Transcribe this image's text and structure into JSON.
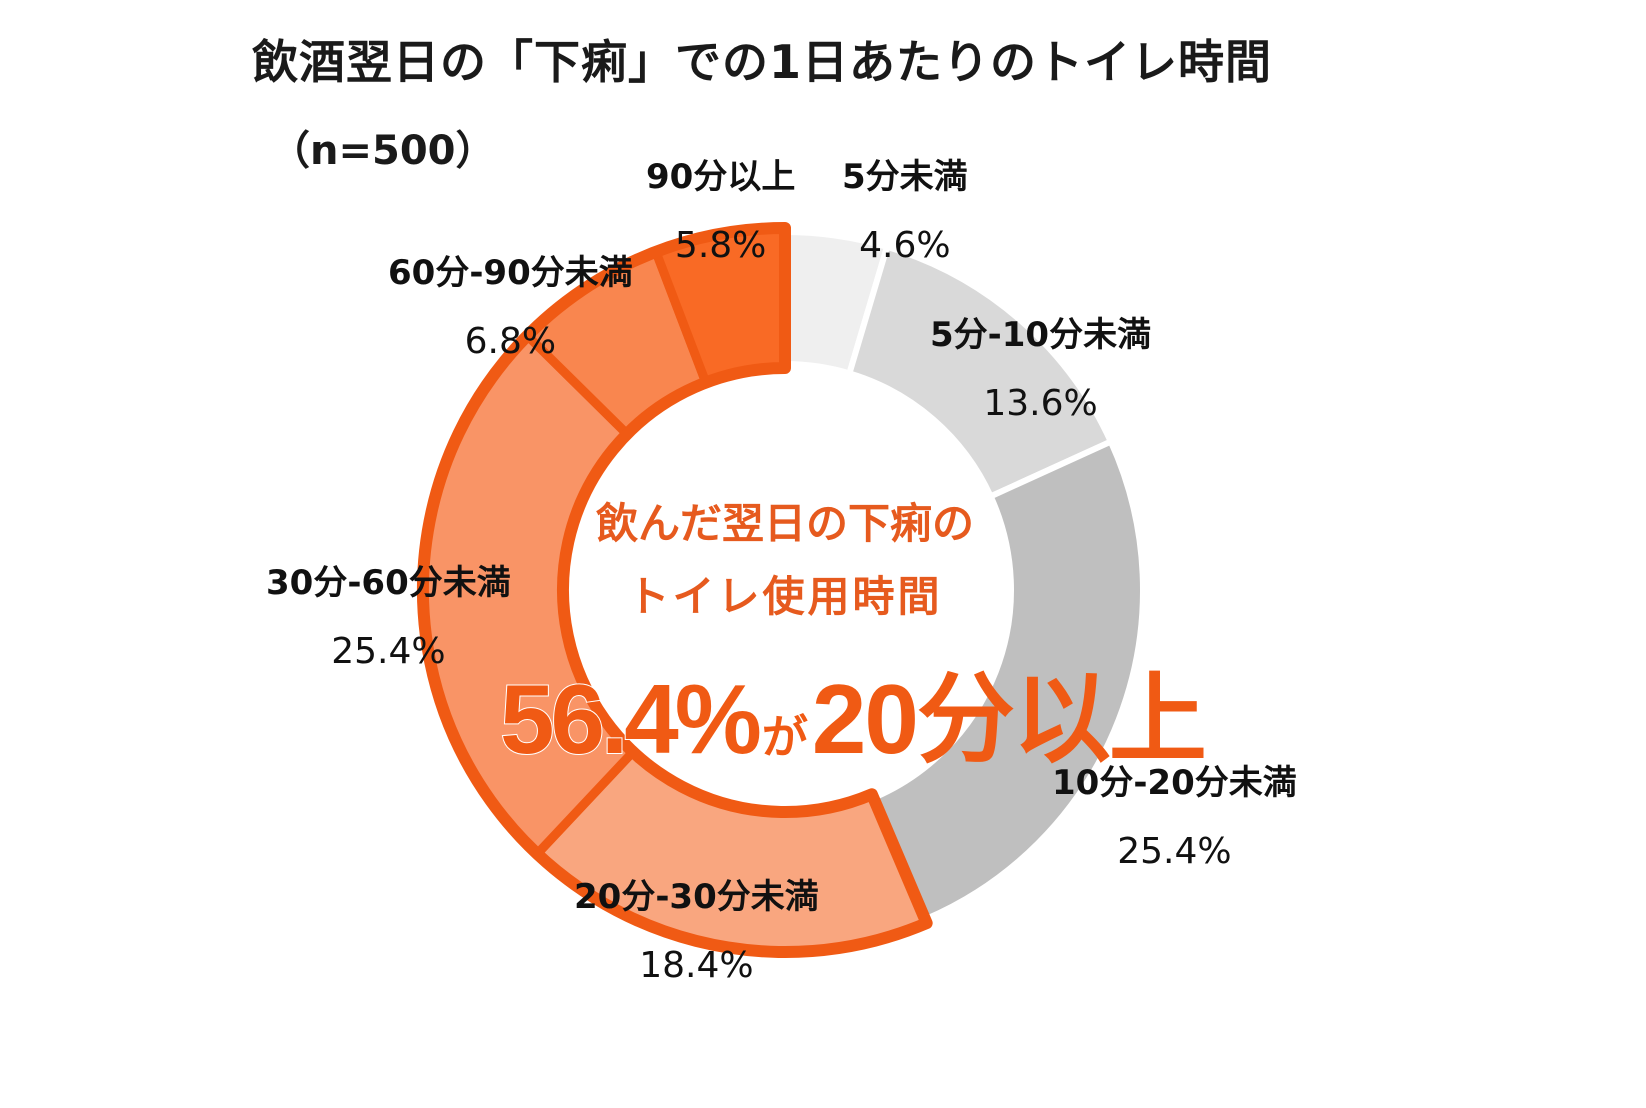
{
  "header": {
    "title": "飲酒翌日の「下痢」での1日あたりのトイレ時間",
    "sample": "（n=500）"
  },
  "center": {
    "line1": "飲んだ翌日の下痢の",
    "line2": "トイレ使用時間",
    "headline_value": "56.4%",
    "headline_particle": "が",
    "headline_rest": "20分以上"
  },
  "colors": {
    "accent": "#f05a14",
    "outline": "#f05a14"
  },
  "chart_data": {
    "type": "pie",
    "subtype": "donut",
    "title": "飲酒翌日の「下痢」での1日あたりのトイレ時間",
    "subtitle": "（n=500）",
    "categories": [
      "5分未満",
      "5分-10分未満",
      "10分-20分未満",
      "20分-30分未満",
      "30分-60分未満",
      "60分-90分未満",
      "90分以上"
    ],
    "values": [
      4.6,
      13.6,
      25.4,
      18.4,
      25.4,
      6.8,
      5.8
    ],
    "unit": "%",
    "direction": "clockwise from top",
    "colors": [
      "#efefef",
      "#d9d9d9",
      "#bfbfbf",
      "#f9a67f",
      "#f99466",
      "#f9864f",
      "#f96a25"
    ],
    "highlight_group": [
      "20分-30分未満",
      "30分-60分未満",
      "60分-90分未満",
      "90分以上"
    ],
    "highlight_total": 56.4,
    "annotation": "56.4%が20分以上",
    "legend": "none (direct labels)"
  },
  "labels": [
    {
      "name": "5分未満",
      "pct": "4.6%"
    },
    {
      "name": "5分-10分未満",
      "pct": "13.6%"
    },
    {
      "name": "10分-20分未満",
      "pct": "25.4%"
    },
    {
      "name": "20分-30分未満",
      "pct": "18.4%"
    },
    {
      "name": "30分-60分未満",
      "pct": "25.4%"
    },
    {
      "name": "60分-90分未満",
      "pct": "6.8%"
    },
    {
      "name": "90分以上",
      "pct": "5.8%"
    }
  ]
}
